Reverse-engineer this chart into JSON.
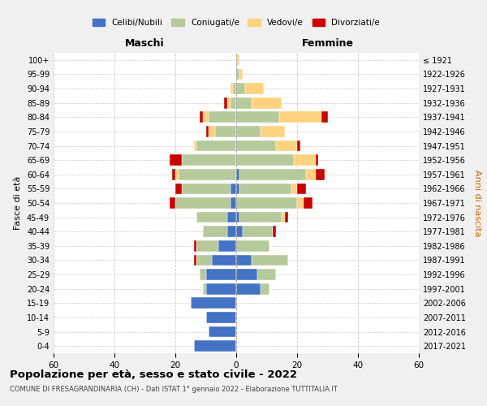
{
  "age_groups": [
    "0-4",
    "5-9",
    "10-14",
    "15-19",
    "20-24",
    "25-29",
    "30-34",
    "35-39",
    "40-44",
    "45-49",
    "50-54",
    "55-59",
    "60-64",
    "65-69",
    "70-74",
    "75-79",
    "80-84",
    "85-89",
    "90-94",
    "95-99",
    "100+"
  ],
  "birth_years": [
    "2017-2021",
    "2012-2016",
    "2007-2011",
    "2002-2006",
    "1997-2001",
    "1992-1996",
    "1987-1991",
    "1982-1986",
    "1977-1981",
    "1972-1976",
    "1967-1971",
    "1962-1966",
    "1957-1961",
    "1952-1956",
    "1947-1951",
    "1942-1946",
    "1937-1941",
    "1932-1936",
    "1927-1931",
    "1922-1926",
    "≤ 1921"
  ],
  "males": {
    "celibe": [
      14,
      9,
      10,
      15,
      10,
      10,
      8,
      6,
      3,
      3,
      2,
      2,
      0,
      0,
      0,
      0,
      0,
      0,
      0,
      0,
      0
    ],
    "coniugato": [
      0,
      0,
      0,
      0,
      1,
      2,
      5,
      7,
      8,
      10,
      18,
      16,
      19,
      18,
      13,
      7,
      9,
      2,
      1,
      0,
      0
    ],
    "vedovo": [
      0,
      0,
      0,
      0,
      0,
      0,
      0,
      0,
      0,
      0,
      0,
      0,
      1,
      0,
      1,
      2,
      2,
      1,
      1,
      0,
      0
    ],
    "divorziato": [
      0,
      0,
      0,
      0,
      0,
      0,
      1,
      1,
      0,
      0,
      2,
      2,
      1,
      4,
      0,
      1,
      1,
      1,
      0,
      0,
      0
    ]
  },
  "females": {
    "nubile": [
      0,
      0,
      0,
      0,
      8,
      7,
      5,
      0,
      2,
      1,
      0,
      1,
      1,
      0,
      0,
      0,
      0,
      0,
      0,
      0,
      0
    ],
    "coniugata": [
      0,
      0,
      0,
      0,
      3,
      6,
      12,
      11,
      10,
      14,
      20,
      17,
      22,
      19,
      13,
      8,
      14,
      5,
      3,
      1,
      0
    ],
    "vedova": [
      0,
      0,
      0,
      0,
      0,
      0,
      0,
      0,
      0,
      1,
      2,
      2,
      3,
      7,
      7,
      8,
      14,
      10,
      6,
      1,
      1
    ],
    "divorziata": [
      0,
      0,
      0,
      0,
      0,
      0,
      0,
      0,
      1,
      1,
      3,
      3,
      3,
      1,
      1,
      0,
      2,
      0,
      0,
      0,
      0
    ]
  },
  "colors": {
    "celibe": "#4472c4",
    "coniugato": "#b5c99a",
    "vedovo": "#ffd27f",
    "divorziato": "#cc0000"
  },
  "xlim": 60,
  "title": "Popolazione per età, sesso e stato civile - 2022",
  "subtitle": "COMUNE DI FRESAGRANDINARIA (CH) - Dati ISTAT 1° gennaio 2022 - Elaborazione TUTTITALIA.IT",
  "xlabel_left": "Maschi",
  "xlabel_right": "Femmine",
  "ylabel_left": "Fasce di età",
  "ylabel_right": "Anni di nascita",
  "legend_labels": [
    "Celibi/Nubili",
    "Coniugati/e",
    "Vedovi/e",
    "Divorziati/e"
  ],
  "bg_color": "#f0f0f0",
  "plot_bg": "#ffffff"
}
